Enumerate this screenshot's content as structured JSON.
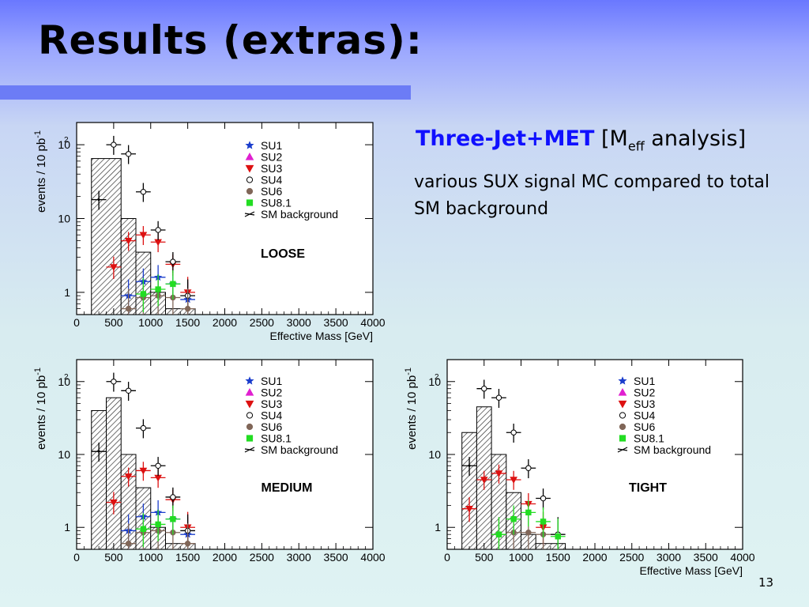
{
  "slide": {
    "title": "Results (extras):",
    "heading_bold": "Three-Jet+MET",
    "heading_bracket_open": "[M",
    "heading_sub": "eff",
    "heading_rest": " analysis]",
    "description": "various SUX signal MC compared to total SM background",
    "page_number": "13"
  },
  "colors": {
    "SU1": "#1a3dcc",
    "SU2": "#e020d0",
    "SU3": "#dd1111",
    "SU4": "#ffffff",
    "SU6": "#806658",
    "SU8.1": "#22dd22",
    "SM": "#000000"
  },
  "chart_data": [
    {
      "type": "bar",
      "panel_label": "LOOSE",
      "xlabel": "Effective Mass [GeV]",
      "ylabel": "events / 10 pb",
      "ylabel_sup": "-1",
      "xlim": [
        0,
        4000
      ],
      "ylim": [
        0.5,
        200
      ],
      "yscale": "log",
      "xticks": [
        "0",
        "500",
        "1000",
        "1500",
        "2000",
        "2500",
        "3000",
        "3500",
        "4000"
      ],
      "yticks": [
        "1",
        "10",
        "10²"
      ],
      "legend": [
        "SU1",
        "SU2",
        "SU3",
        "SU4",
        "SU6",
        "SU8.1",
        "SM background"
      ],
      "background": {
        "bins": [
          [
            200,
            600,
            65
          ],
          [
            600,
            800,
            10
          ],
          [
            800,
            1000,
            3.5
          ],
          [
            1000,
            1200,
            1
          ],
          [
            1200,
            1600,
            0.6
          ]
        ]
      },
      "series": [
        {
          "name": "SU1",
          "x": [
            700,
            900,
            1100,
            1300,
            1500
          ],
          "values": [
            0.9,
            1.4,
            1.6,
            1.3,
            0.8
          ]
        },
        {
          "name": "SU3",
          "x": [
            500,
            700,
            900,
            1100,
            1300,
            1500
          ],
          "values": [
            2.2,
            5,
            6,
            4.8,
            2.4,
            1
          ]
        },
        {
          "name": "SU4",
          "x": [
            500,
            700,
            900,
            1100,
            1300,
            1500
          ],
          "values": [
            100,
            75,
            23,
            7,
            2.6,
            0.9
          ]
        },
        {
          "name": "SU6",
          "x": [
            700,
            900,
            1100,
            1300,
            1500
          ],
          "values": [
            0.6,
            0.85,
            0.9,
            0.85,
            0.6
          ]
        },
        {
          "name": "SU8.1",
          "x": [
            900,
            1100,
            1300
          ],
          "values": [
            0.95,
            1.1,
            1.3
          ]
        },
        {
          "name": "SM background",
          "x": [
            300
          ],
          "values": [
            18
          ]
        }
      ]
    },
    {
      "type": "bar",
      "panel_label": "MEDIUM",
      "xlabel": "",
      "ylabel": "events / 10 pb",
      "ylabel_sup": "-1",
      "xlim": [
        0,
        4000
      ],
      "ylim": [
        0.5,
        200
      ],
      "yscale": "log",
      "xticks": [
        "0",
        "500",
        "1000",
        "1500",
        "2000",
        "2500",
        "3000",
        "3500",
        "4000"
      ],
      "yticks": [
        "1",
        "10",
        "10²"
      ],
      "legend": [
        "SU1",
        "SU2",
        "SU3",
        "SU4",
        "SU6",
        "SU8.1",
        "SM background"
      ],
      "background": {
        "bins": [
          [
            200,
            400,
            40
          ],
          [
            400,
            600,
            60
          ],
          [
            600,
            800,
            10
          ],
          [
            800,
            1000,
            3.5
          ],
          [
            1000,
            1200,
            1
          ],
          [
            1200,
            1600,
            0.6
          ]
        ]
      },
      "series": [
        {
          "name": "SU1",
          "x": [
            700,
            900,
            1100,
            1300,
            1500
          ],
          "values": [
            0.9,
            1.4,
            1.6,
            1.3,
            0.8
          ]
        },
        {
          "name": "SU3",
          "x": [
            500,
            700,
            900,
            1100,
            1300,
            1500
          ],
          "values": [
            2.2,
            5,
            6,
            4.8,
            2.4,
            1
          ]
        },
        {
          "name": "SU4",
          "x": [
            500,
            700,
            900,
            1100,
            1300,
            1500
          ],
          "values": [
            100,
            75,
            23,
            7,
            2.6,
            0.9
          ]
        },
        {
          "name": "SU6",
          "x": [
            700,
            900,
            1100,
            1300,
            1500
          ],
          "values": [
            0.6,
            0.85,
            0.9,
            0.85,
            0.6
          ]
        },
        {
          "name": "SU8.1",
          "x": [
            900,
            1100,
            1300
          ],
          "values": [
            0.95,
            1.1,
            1.3
          ]
        },
        {
          "name": "SM background",
          "x": [
            300
          ],
          "values": [
            11
          ]
        }
      ]
    },
    {
      "type": "bar",
      "panel_label": "TIGHT",
      "xlabel": "Effective Mass [GeV]",
      "ylabel": "events / 10 pb",
      "ylabel_sup": "-1",
      "xlim": [
        0,
        4000
      ],
      "ylim": [
        0.5,
        200
      ],
      "yscale": "log",
      "xticks": [
        "0",
        "500",
        "1000",
        "1500",
        "2000",
        "2500",
        "3000",
        "3500",
        "4000"
      ],
      "yticks": [
        "1",
        "10",
        "10²"
      ],
      "legend": [
        "SU1",
        "SU2",
        "SU3",
        "SU4",
        "SU6",
        "SU8.1",
        "SM background"
      ],
      "background": {
        "bins": [
          [
            200,
            400,
            20
          ],
          [
            400,
            600,
            45
          ],
          [
            600,
            800,
            10
          ],
          [
            800,
            1000,
            3
          ],
          [
            1000,
            1200,
            0.8
          ],
          [
            1200,
            1600,
            0.6
          ]
        ]
      },
      "series": [
        {
          "name": "SU3",
          "x": [
            300,
            500,
            700,
            900,
            1100,
            1300
          ],
          "values": [
            1.8,
            4.5,
            5.5,
            4.5,
            2.1,
            1
          ]
        },
        {
          "name": "SU4",
          "x": [
            500,
            700,
            900,
            1100,
            1300,
            1500
          ],
          "values": [
            80,
            60,
            20,
            6.5,
            2.5,
            0.8
          ]
        },
        {
          "name": "SU6",
          "x": [
            700,
            900,
            1100,
            1300
          ],
          "values": [
            0.8,
            0.85,
            0.85,
            0.8
          ]
        },
        {
          "name": "SU8.1",
          "x": [
            700,
            900,
            1100,
            1300,
            1500
          ],
          "values": [
            0.8,
            1.3,
            1.6,
            1.2,
            0.75
          ]
        },
        {
          "name": "SM background",
          "x": [
            300
          ],
          "values": [
            7
          ]
        }
      ]
    }
  ]
}
